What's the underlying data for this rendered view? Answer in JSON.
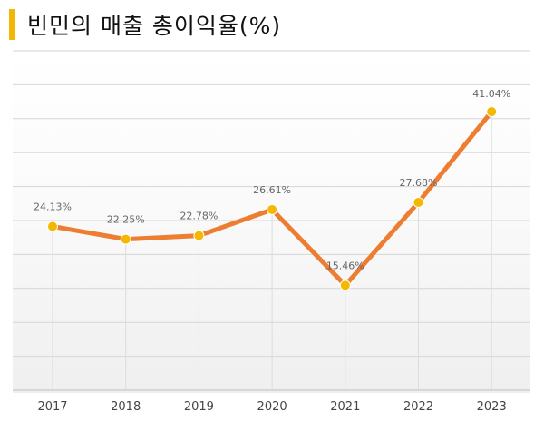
{
  "title": "빈민의 매출 총이익율(%)",
  "colors": {
    "accent": "#f2b705",
    "line": "#ed7d31",
    "marker": "#f5b800"
  },
  "chart_data": {
    "type": "line",
    "title": "빈민의 매출 총이익율(%)",
    "categories": [
      "2017",
      "2018",
      "2019",
      "2020",
      "2021",
      "2022",
      "2023"
    ],
    "series": [
      {
        "values": [
          24.13,
          22.25,
          22.78,
          26.61,
          15.46,
          27.68,
          41.04
        ]
      }
    ],
    "data_labels": [
      "24.13%",
      "22.25%",
      "22.78%",
      "26.61%",
      "15.46%",
      "27.68%",
      "41.04%"
    ],
    "ylim": [
      0,
      50
    ],
    "grid": true,
    "legend": "none"
  }
}
